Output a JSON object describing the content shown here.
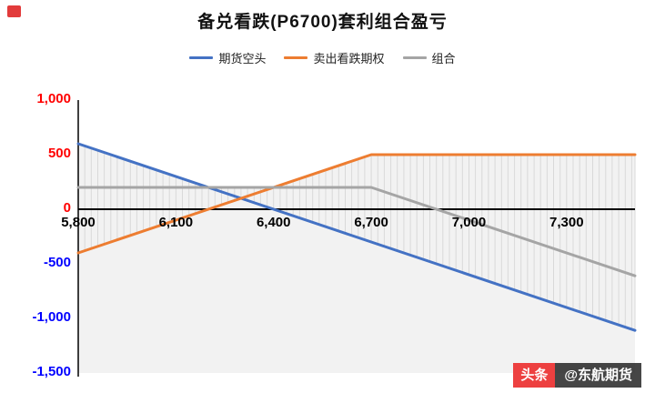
{
  "page": {
    "watermark": {
      "badge": "头条",
      "handle": "@东航期货",
      "badge_bg": "#ed4040",
      "handle_bg": "rgba(38,38,38,0.85)"
    }
  },
  "chart_data": {
    "type": "line",
    "title": "备兑看跌(P6700)套利组合盈亏",
    "legend_position": "top",
    "grid": false,
    "x_axis": {
      "min": 5800,
      "max": 7510,
      "ticks": [
        5800,
        6100,
        6400,
        6700,
        7000,
        7300
      ],
      "tick_labels": [
        "5,800",
        "6,100",
        "6,400",
        "6,700",
        "7,000",
        "7,300"
      ]
    },
    "y_axis": {
      "min": -1500,
      "max": 1000,
      "ticks": [
        1000,
        500,
        0,
        -500,
        -1000,
        -1500
      ],
      "tick_labels": [
        "1,000",
        "500",
        "0",
        "-500",
        "-1,000",
        "-1,500"
      ],
      "positive_color": "#ff0000",
      "negative_color": "#0000ff"
    },
    "series": [
      {
        "name": "期货空头",
        "color": "#4472C4",
        "points": [
          [
            5800,
            600
          ],
          [
            7510,
            -1110
          ]
        ]
      },
      {
        "name": "卖出看跌期权",
        "color": "#ED7D31",
        "points": [
          [
            5800,
            -400
          ],
          [
            6700,
            500
          ],
          [
            7510,
            500
          ]
        ]
      },
      {
        "name": "组合",
        "color": "#A5A5A5",
        "points": [
          [
            5800,
            200
          ],
          [
            6700,
            200
          ],
          [
            7510,
            -610
          ]
        ]
      }
    ],
    "hatch": {
      "step": 20,
      "color": "#d9d9d9"
    },
    "band_fill": "#f2f2f2",
    "axis_color": "#000000"
  }
}
